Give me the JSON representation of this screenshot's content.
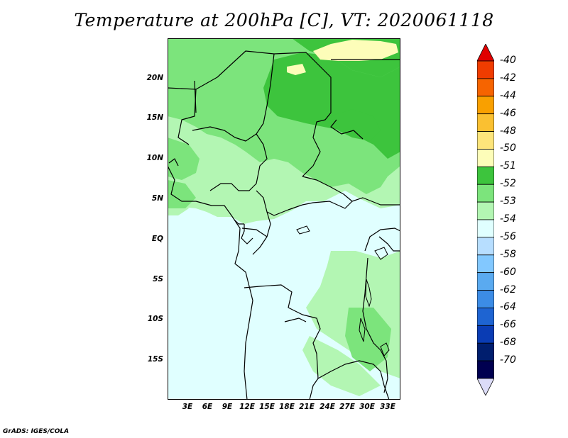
{
  "title": "Temperature at 200hPa [C], VT: 2020061118",
  "footer": "GrADS: IGES/COLA",
  "axes": {
    "y_ticks": [
      "20N",
      "15N",
      "10N",
      "5N",
      "EQ",
      "5S",
      "10S",
      "15S"
    ],
    "x_ticks": [
      "3E",
      "6E",
      "9E",
      "12E",
      "15E",
      "18E",
      "21E",
      "24E",
      "27E",
      "30E",
      "33E"
    ]
  },
  "legend": {
    "labels": [
      "-40",
      "-42",
      "-44",
      "-46",
      "-48",
      "-50",
      "-51",
      "-52",
      "-53",
      "-54",
      "-56",
      "-58",
      "-60",
      "-62",
      "-64",
      "-66",
      "-68",
      "-70"
    ],
    "colors": [
      "#e00000",
      "#f03c00",
      "#f66400",
      "#f9a000",
      "#fac031",
      "#fde57b",
      "#fdfdb9",
      "#3dc43d",
      "#7ce47c",
      "#b3f6b3",
      "#e0ffff",
      "#b7deff",
      "#82c8ff",
      "#5aaaf0",
      "#3c8ce6",
      "#1e64d2",
      "#0a3cb4",
      "#001e6e",
      "#000050",
      "#dcdcf8"
    ]
  },
  "map_fill_colors": {
    "ocean": "#e0ffff",
    "light_green": "#b3f6b3",
    "mid_green": "#7ce47c",
    "dark_green": "#3dc43d",
    "yellow": "#fdfdb9"
  }
}
